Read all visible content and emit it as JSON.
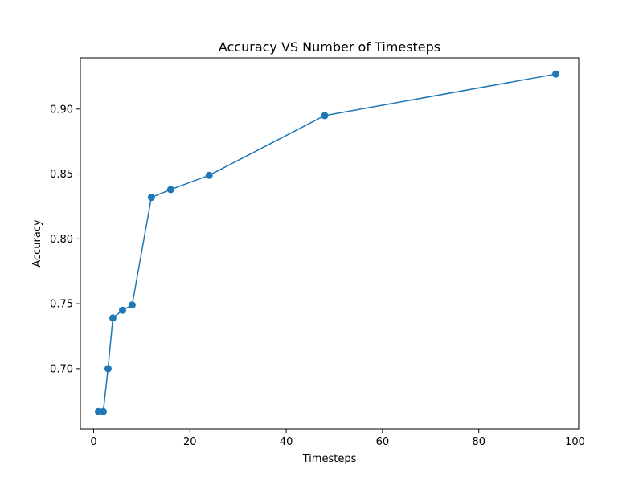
{
  "chart_data": {
    "type": "line",
    "title": "Accuracy VS Number of Timesteps",
    "xlabel": "Timesteps",
    "ylabel": "Accuracy",
    "xlim": [
      -2.75,
      100.75
    ],
    "ylim": [
      0.6535,
      0.9395
    ],
    "xticks": [
      0,
      20,
      40,
      60,
      80,
      100
    ],
    "yticks": [
      0.7,
      0.75,
      0.8,
      0.85,
      0.9
    ],
    "xtick_labels": [
      "0",
      "20",
      "40",
      "60",
      "80",
      "100"
    ],
    "ytick_labels": [
      "0.70",
      "0.75",
      "0.80",
      "0.85",
      "0.90"
    ],
    "grid": false,
    "series": [
      {
        "color": "#1f77b4",
        "marker": "circle",
        "x": [
          1,
          2,
          3,
          4,
          6,
          8,
          12,
          16,
          24,
          48,
          96
        ],
        "y": [
          0.667,
          0.667,
          0.7,
          0.739,
          0.745,
          0.749,
          0.832,
          0.838,
          0.849,
          0.895,
          0.927
        ]
      }
    ]
  }
}
